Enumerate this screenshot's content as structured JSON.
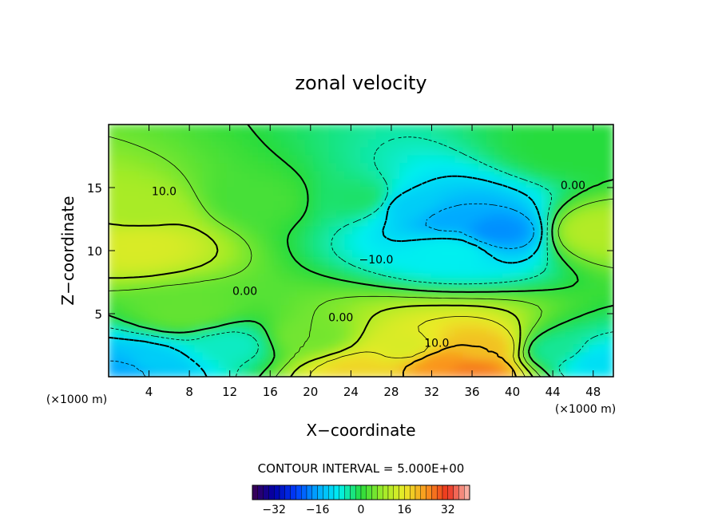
{
  "chart_data": {
    "type": "heatmap",
    "title": "zonal velocity",
    "xlabel": "X−coordinate",
    "ylabel": "Z−coordinate",
    "x_units": "(×1000 m)",
    "z_units": "(×1000 m)",
    "xlim": [
      0,
      50
    ],
    "ylim": [
      0,
      20
    ],
    "x_ticks": [
      4,
      8,
      12,
      16,
      20,
      24,
      28,
      32,
      36,
      40,
      44,
      48
    ],
    "y_ticks": [
      5,
      10,
      15
    ],
    "contour_interval_text": "CONTOUR INTERVAL = 5.000E+00",
    "colorbar": {
      "range": [
        -40,
        40
      ],
      "ticks": [
        -32,
        -16,
        0,
        16,
        32
      ],
      "tick_labels": [
        "−32",
        "−16",
        "0",
        "16",
        "32"
      ]
    },
    "contour_labels": [
      {
        "text": "10.0",
        "x": 5.5,
        "z": 14.7
      },
      {
        "text": "−10.0",
        "x": 26.5,
        "z": 9.3
      },
      {
        "text": "0.00",
        "x": 13.5,
        "z": 6.8
      },
      {
        "text": "0.00",
        "x": 23.0,
        "z": 4.7
      },
      {
        "text": "10.0",
        "x": 32.5,
        "z": 2.7
      },
      {
        "text": "0.00",
        "x": 46.0,
        "z": 15.2
      }
    ],
    "field_features": [
      {
        "x": 3.0,
        "z": 10.5,
        "value": 14
      },
      {
        "x": 3.0,
        "z": 13.0,
        "value": 9
      },
      {
        "x": 48.5,
        "z": 11.5,
        "value": 10
      },
      {
        "x": 8.0,
        "z": 5.0,
        "value": 4
      },
      {
        "x": 25.0,
        "z": 14.0,
        "value": -2
      },
      {
        "x": 34.0,
        "z": 12.5,
        "value": -16
      },
      {
        "x": 38.5,
        "z": 11.5,
        "value": -18
      },
      {
        "x": 30.0,
        "z": 13.5,
        "value": -12
      },
      {
        "x": 34.0,
        "z": 10.0,
        "value": -8
      },
      {
        "x": 4.0,
        "z": 1.0,
        "value": -12
      },
      {
        "x": 2.0,
        "z": 0.5,
        "value": -16
      },
      {
        "x": 12.0,
        "z": 2.5,
        "value": -6
      },
      {
        "x": 20.0,
        "z": 3.0,
        "value": 5
      },
      {
        "x": 25.0,
        "z": 0.5,
        "value": 18
      },
      {
        "x": 29.5,
        "z": 2.2,
        "value": 14
      },
      {
        "x": 33.0,
        "z": 1.0,
        "value": 24
      },
      {
        "x": 36.0,
        "z": 0.5,
        "value": 26
      },
      {
        "x": 37.0,
        "z": 2.2,
        "value": 20
      },
      {
        "x": 44.5,
        "z": 2.0,
        "value": -4
      },
      {
        "x": 48.5,
        "z": 1.2,
        "value": -10
      },
      {
        "x": 15.0,
        "z": 14.0,
        "value": 2
      },
      {
        "x": 46.0,
        "z": 18.0,
        "value": 0
      }
    ]
  }
}
